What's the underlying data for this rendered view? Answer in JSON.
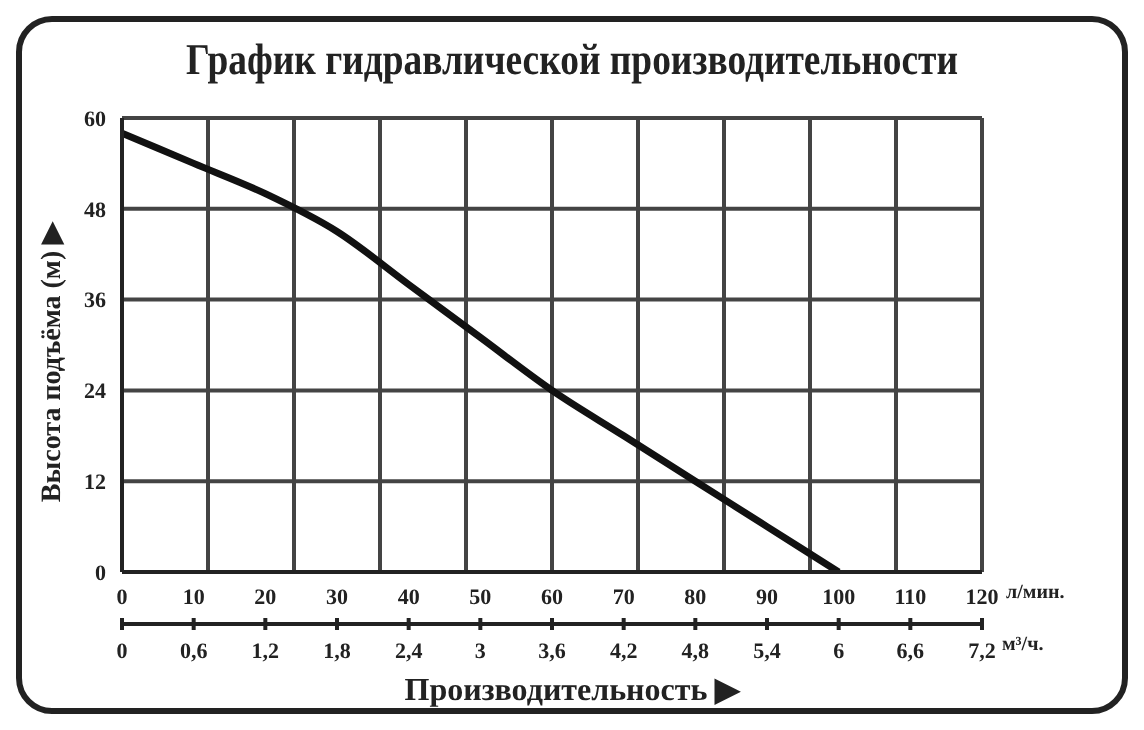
{
  "chart_data": {
    "type": "line",
    "title": "График гидравлической производительности",
    "xlabel": "Производительность ▶",
    "ylabel": "Высота подъёма (м) ▶",
    "x": [
      0,
      10,
      20,
      30,
      40,
      50,
      60,
      70,
      80,
      90,
      100
    ],
    "series": [
      {
        "color": "#111111",
        "values": [
          58,
          54,
          50,
          45,
          38,
          31,
          24,
          18,
          12,
          6,
          0
        ]
      }
    ],
    "xlim": [
      0,
      120
    ],
    "xticks": [
      0,
      10,
      20,
      30,
      40,
      50,
      60,
      70,
      80,
      90,
      100,
      110,
      120
    ],
    "x2lim": [
      0,
      7.2
    ],
    "x2ticks": [
      0,
      {
        "value": 0.6,
        "label": "0,6"
      },
      {
        "value": 1.2,
        "label": "1,2"
      },
      {
        "value": 1.8,
        "label": "1,8"
      },
      {
        "value": 2.4,
        "label": "2,4"
      },
      3,
      {
        "value": 3.6,
        "label": "3,6"
      },
      {
        "value": 4.2,
        "label": "4,2"
      },
      {
        "value": 4.8,
        "label": "4,8"
      },
      {
        "value": 5.4,
        "label": "5,4"
      },
      6,
      {
        "value": 6.6,
        "label": "6,6"
      },
      {
        "value": 7.2,
        "label": "7,2"
      }
    ],
    "ylim": [
      0,
      60
    ],
    "yticks": [
      0,
      12,
      24,
      36,
      48,
      60
    ],
    "annotations": [
      "л/мин.",
      "м³/ч."
    ],
    "grid": true,
    "marker": "none",
    "line_style": "solid",
    "legend": false
  }
}
